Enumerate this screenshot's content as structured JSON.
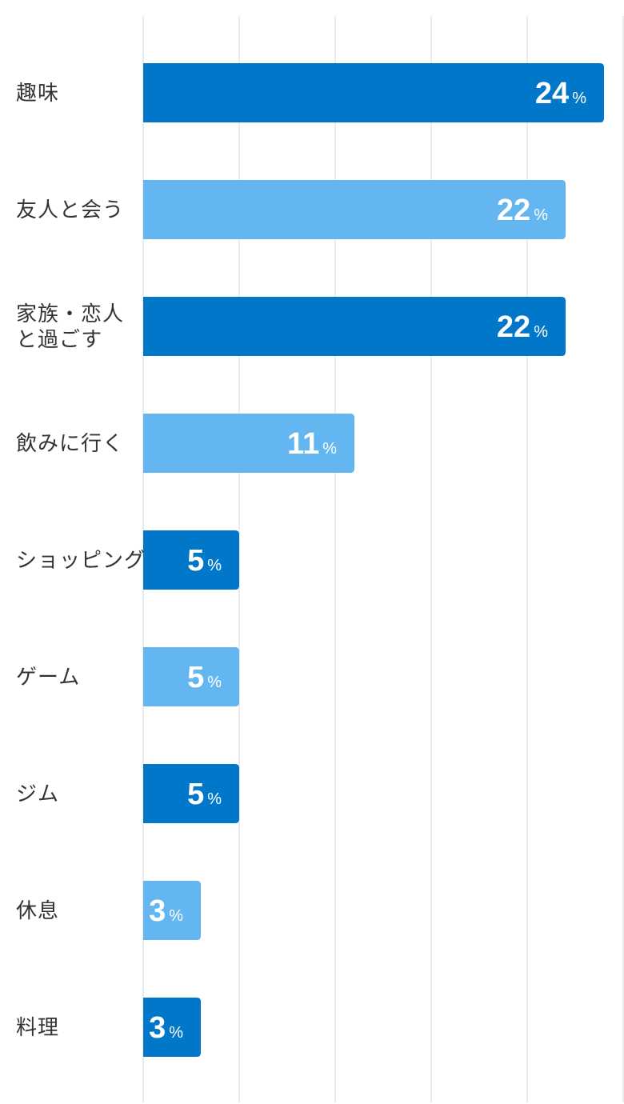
{
  "chart_data": {
    "type": "bar",
    "orientation": "horizontal",
    "categories": [
      [
        "趣味"
      ],
      [
        "友人と会う"
      ],
      [
        "家族・恋人",
        "と過ごす"
      ],
      [
        "飲みに行く"
      ],
      [
        "ショッピング"
      ],
      [
        "ゲーム"
      ],
      [
        "ジム"
      ],
      [
        "休息"
      ],
      [
        "料理"
      ]
    ],
    "values": [
      24,
      22,
      22,
      11,
      5,
      5,
      5,
      3,
      3
    ],
    "unit": "%",
    "xlim": [
      0,
      25
    ],
    "grid": true,
    "colors": [
      "#0077c8",
      "#63b6ef",
      "#0077c8",
      "#63b6ef",
      "#0077c8",
      "#63b6ef",
      "#0077c8",
      "#63b6ef",
      "#0077c8"
    ]
  }
}
